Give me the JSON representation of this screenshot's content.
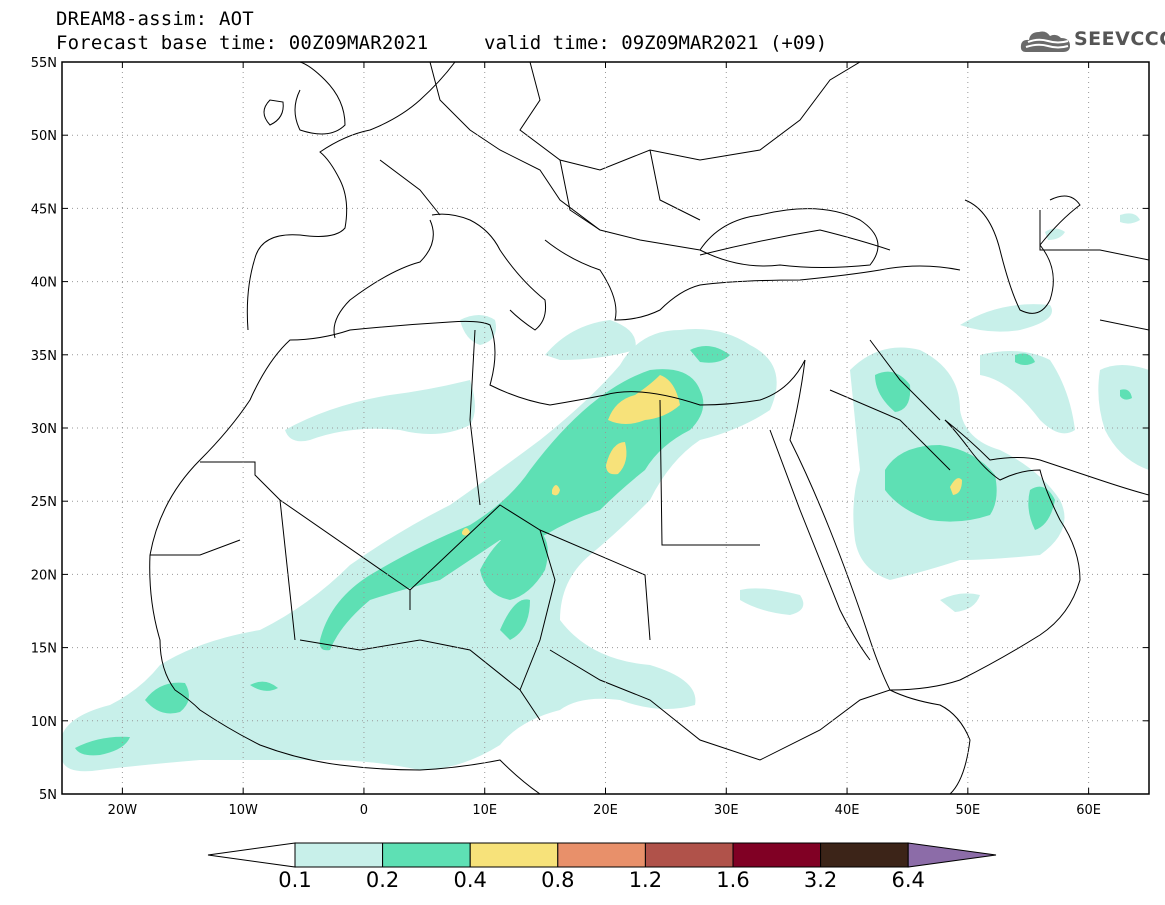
{
  "header": {
    "title_line1": "DREAM8-assim: AOT",
    "title_line2": "Forecast base time: 00Z09MAR2021",
    "valid_time": "valid time: 09Z09MAR2021 (+09)",
    "logo_text": "SEEVCCC"
  },
  "map": {
    "lon_range": [
      -25,
      65
    ],
    "lat_range": [
      5,
      55
    ],
    "x_ticks": [
      {
        "lon": -20,
        "label": "20W"
      },
      {
        "lon": -10,
        "label": "10W"
      },
      {
        "lon": 0,
        "label": "0"
      },
      {
        "lon": 10,
        "label": "10E"
      },
      {
        "lon": 20,
        "label": "20E"
      },
      {
        "lon": 30,
        "label": "30E"
      },
      {
        "lon": 40,
        "label": "40E"
      },
      {
        "lon": 50,
        "label": "50E"
      },
      {
        "lon": 60,
        "label": "60E"
      }
    ],
    "y_ticks": [
      {
        "lat": 55,
        "label": "55N"
      },
      {
        "lat": 50,
        "label": "50N"
      },
      {
        "lat": 45,
        "label": "45N"
      },
      {
        "lat": 40,
        "label": "40N"
      },
      {
        "lat": 35,
        "label": "35N"
      },
      {
        "lat": 30,
        "label": "30N"
      },
      {
        "lat": 25,
        "label": "25N"
      },
      {
        "lat": 20,
        "label": "20N"
      },
      {
        "lat": 15,
        "label": "15N"
      },
      {
        "lat": 10,
        "label": "10N"
      },
      {
        "lat": 5,
        "label": "5N"
      }
    ],
    "grid": true
  },
  "colorbar": {
    "colors": [
      "#ffffff",
      "#c8f0ea",
      "#5ee0b4",
      "#f7e27a",
      "#e8906a",
      "#b0524a",
      "#800024",
      "#3c2418",
      "#8c6ca8"
    ],
    "labels": [
      "0.1",
      "0.2",
      "0.4",
      "0.8",
      "1.2",
      "1.6",
      "3.2",
      "6.4"
    ]
  }
}
